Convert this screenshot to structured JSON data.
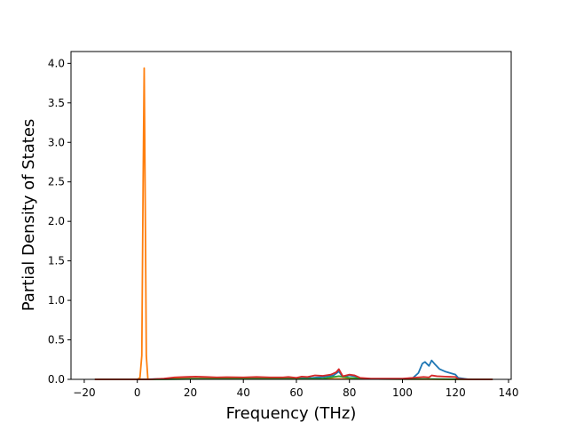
{
  "chart_data": {
    "type": "line",
    "title": "",
    "xlabel": "Frequency (THz)",
    "ylabel": "Partial Density of States",
    "xlim": [
      -25,
      141
    ],
    "ylim": [
      0,
      4.15
    ],
    "xticks": [
      -20,
      0,
      20,
      40,
      60,
      80,
      100,
      120,
      140
    ],
    "yticks": [
      0.0,
      0.5,
      1.0,
      1.5,
      2.0,
      2.5,
      3.0,
      3.5,
      4.0
    ],
    "grid": false,
    "series": [
      {
        "color": "#1f77b4",
        "points": [
          [
            -16,
            0
          ],
          [
            -2,
            0
          ],
          [
            3,
            0
          ],
          [
            8,
            0.005
          ],
          [
            14,
            0.01
          ],
          [
            20,
            0.012
          ],
          [
            30,
            0.012
          ],
          [
            40,
            0.012
          ],
          [
            50,
            0.012
          ],
          [
            58,
            0.012
          ],
          [
            62,
            0.015
          ],
          [
            66,
            0.02
          ],
          [
            70,
            0.03
          ],
          [
            74,
            0.05
          ],
          [
            76,
            0.1
          ],
          [
            77.5,
            0.03
          ],
          [
            80,
            0.05
          ],
          [
            82,
            0.04
          ],
          [
            84,
            0.01
          ],
          [
            90,
            0.005
          ],
          [
            100,
            0.005
          ],
          [
            104,
            0.02
          ],
          [
            106,
            0.08
          ],
          [
            107.5,
            0.2
          ],
          [
            108.5,
            0.22
          ],
          [
            110,
            0.17
          ],
          [
            111,
            0.24
          ],
          [
            112,
            0.2
          ],
          [
            114,
            0.13
          ],
          [
            116,
            0.1
          ],
          [
            118,
            0.08
          ],
          [
            120,
            0.06
          ],
          [
            121,
            0.02
          ],
          [
            125,
            0
          ],
          [
            134,
            0
          ]
        ]
      },
      {
        "color": "#ff7f0e",
        "points": [
          [
            -16,
            0
          ],
          [
            0,
            0
          ],
          [
            1,
            0.02
          ],
          [
            1.7,
            0.3
          ],
          [
            2.2,
            2.5
          ],
          [
            2.6,
            3.94
          ],
          [
            3,
            2.2
          ],
          [
            3.4,
            0.3
          ],
          [
            4,
            0
          ],
          [
            10,
            0.005
          ],
          [
            20,
            0.01
          ],
          [
            30,
            0.01
          ],
          [
            40,
            0.008
          ],
          [
            50,
            0.008
          ],
          [
            60,
            0.006
          ],
          [
            70,
            0.006
          ],
          [
            80,
            0.005
          ],
          [
            90,
            0.004
          ],
          [
            100,
            0.003
          ],
          [
            110,
            0.002
          ],
          [
            120,
            0
          ],
          [
            134,
            0
          ]
        ]
      },
      {
        "color": "#2ca02c",
        "points": [
          [
            -16,
            0
          ],
          [
            10,
            0
          ],
          [
            20,
            0.004
          ],
          [
            40,
            0.005
          ],
          [
            60,
            0.006
          ],
          [
            70,
            0.01
          ],
          [
            76,
            0.04
          ],
          [
            80,
            0.02
          ],
          [
            90,
            0.004
          ],
          [
            100,
            0.003
          ],
          [
            110,
            0.004
          ],
          [
            120,
            0.002
          ],
          [
            134,
            0
          ]
        ]
      },
      {
        "color": "#d62728",
        "points": [
          [
            -16,
            0
          ],
          [
            5,
            0
          ],
          [
            10,
            0.01
          ],
          [
            14,
            0.025
          ],
          [
            18,
            0.03
          ],
          [
            22,
            0.035
          ],
          [
            26,
            0.03
          ],
          [
            30,
            0.025
          ],
          [
            34,
            0.028
          ],
          [
            40,
            0.025
          ],
          [
            45,
            0.03
          ],
          [
            50,
            0.025
          ],
          [
            55,
            0.025
          ],
          [
            57,
            0.03
          ],
          [
            60,
            0.02
          ],
          [
            62,
            0.035
          ],
          [
            64,
            0.03
          ],
          [
            67,
            0.05
          ],
          [
            70,
            0.045
          ],
          [
            73,
            0.06
          ],
          [
            75,
            0.09
          ],
          [
            76,
            0.13
          ],
          [
            77.5,
            0.04
          ],
          [
            80,
            0.06
          ],
          [
            82,
            0.05
          ],
          [
            84,
            0.02
          ],
          [
            88,
            0.01
          ],
          [
            95,
            0.01
          ],
          [
            100,
            0.01
          ],
          [
            104,
            0.02
          ],
          [
            108,
            0.03
          ],
          [
            110,
            0.025
          ],
          [
            111,
            0.05
          ],
          [
            113,
            0.04
          ],
          [
            116,
            0.035
          ],
          [
            120,
            0.03
          ],
          [
            121,
            0.005
          ],
          [
            125,
            0
          ],
          [
            134,
            0
          ]
        ]
      }
    ]
  }
}
